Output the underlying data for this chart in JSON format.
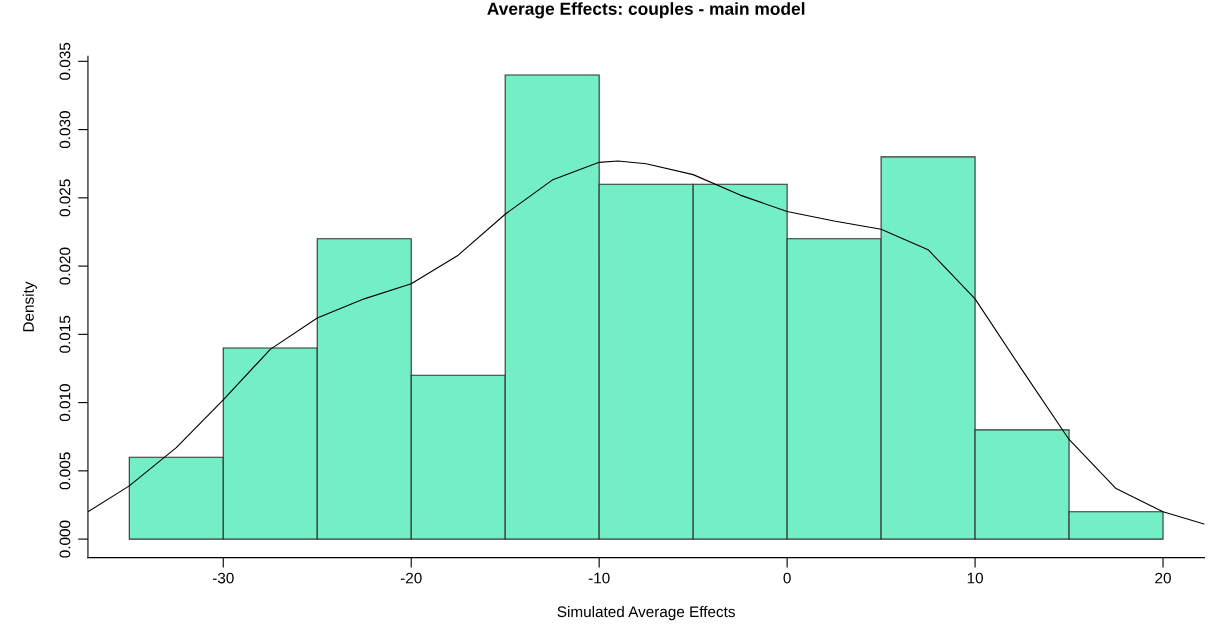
{
  "chart_data": {
    "type": "histogram",
    "title": "Average Effects: couples - main model",
    "xlabel": "Simulated Average Effects",
    "ylabel": "Density",
    "bins": [
      -35,
      -30,
      -25,
      -20,
      -15,
      -10,
      -5,
      0,
      5,
      10,
      15,
      20
    ],
    "values": [
      0.006,
      0.014,
      0.022,
      0.012,
      0.034,
      0.026,
      0.026,
      0.022,
      0.028,
      0.008,
      0.002
    ],
    "color": "#74eec6",
    "series": [
      {
        "type": "line",
        "color": "#000000",
        "x": [
          -37.2,
          -35,
          -32.5,
          -30,
          -27.5,
          -25,
          -22.5,
          -20,
          -17.5,
          -15,
          -12.5,
          -10,
          -9,
          -7.5,
          -5,
          -2.5,
          0,
          2.5,
          5,
          7.5,
          10,
          12.5,
          15,
          17.5,
          20,
          22.2
        ],
        "values": [
          0.002,
          0.0039,
          0.0067,
          0.0102,
          0.0139,
          0.0162,
          0.0176,
          0.0187,
          0.0208,
          0.0238,
          0.0263,
          0.0276,
          0.0277,
          0.0275,
          0.0267,
          0.0252,
          0.024,
          0.0233,
          0.0227,
          0.0212,
          0.0176,
          0.0124,
          0.0073,
          0.0037,
          0.002,
          0.0011
        ]
      }
    ],
    "xlim": [
      -37.2,
      22.2
    ],
    "xticks": [
      -30,
      -20,
      -10,
      0,
      10,
      20
    ],
    "ylim": [
      -0.00136,
      0.03536
    ],
    "yticks": [
      {
        "value": 0,
        "label": "0.000"
      },
      {
        "value": 0.005,
        "label": "0.005"
      },
      {
        "value": 0.01,
        "label": "0.010"
      },
      {
        "value": 0.015,
        "label": "0.015"
      },
      {
        "value": 0.02,
        "label": "0.020"
      },
      {
        "value": 0.025,
        "label": "0.025"
      },
      {
        "value": 0.03,
        "label": "0.030"
      },
      {
        "value": 0.035,
        "label": "0.035"
      }
    ],
    "grid": false,
    "legend": false
  }
}
